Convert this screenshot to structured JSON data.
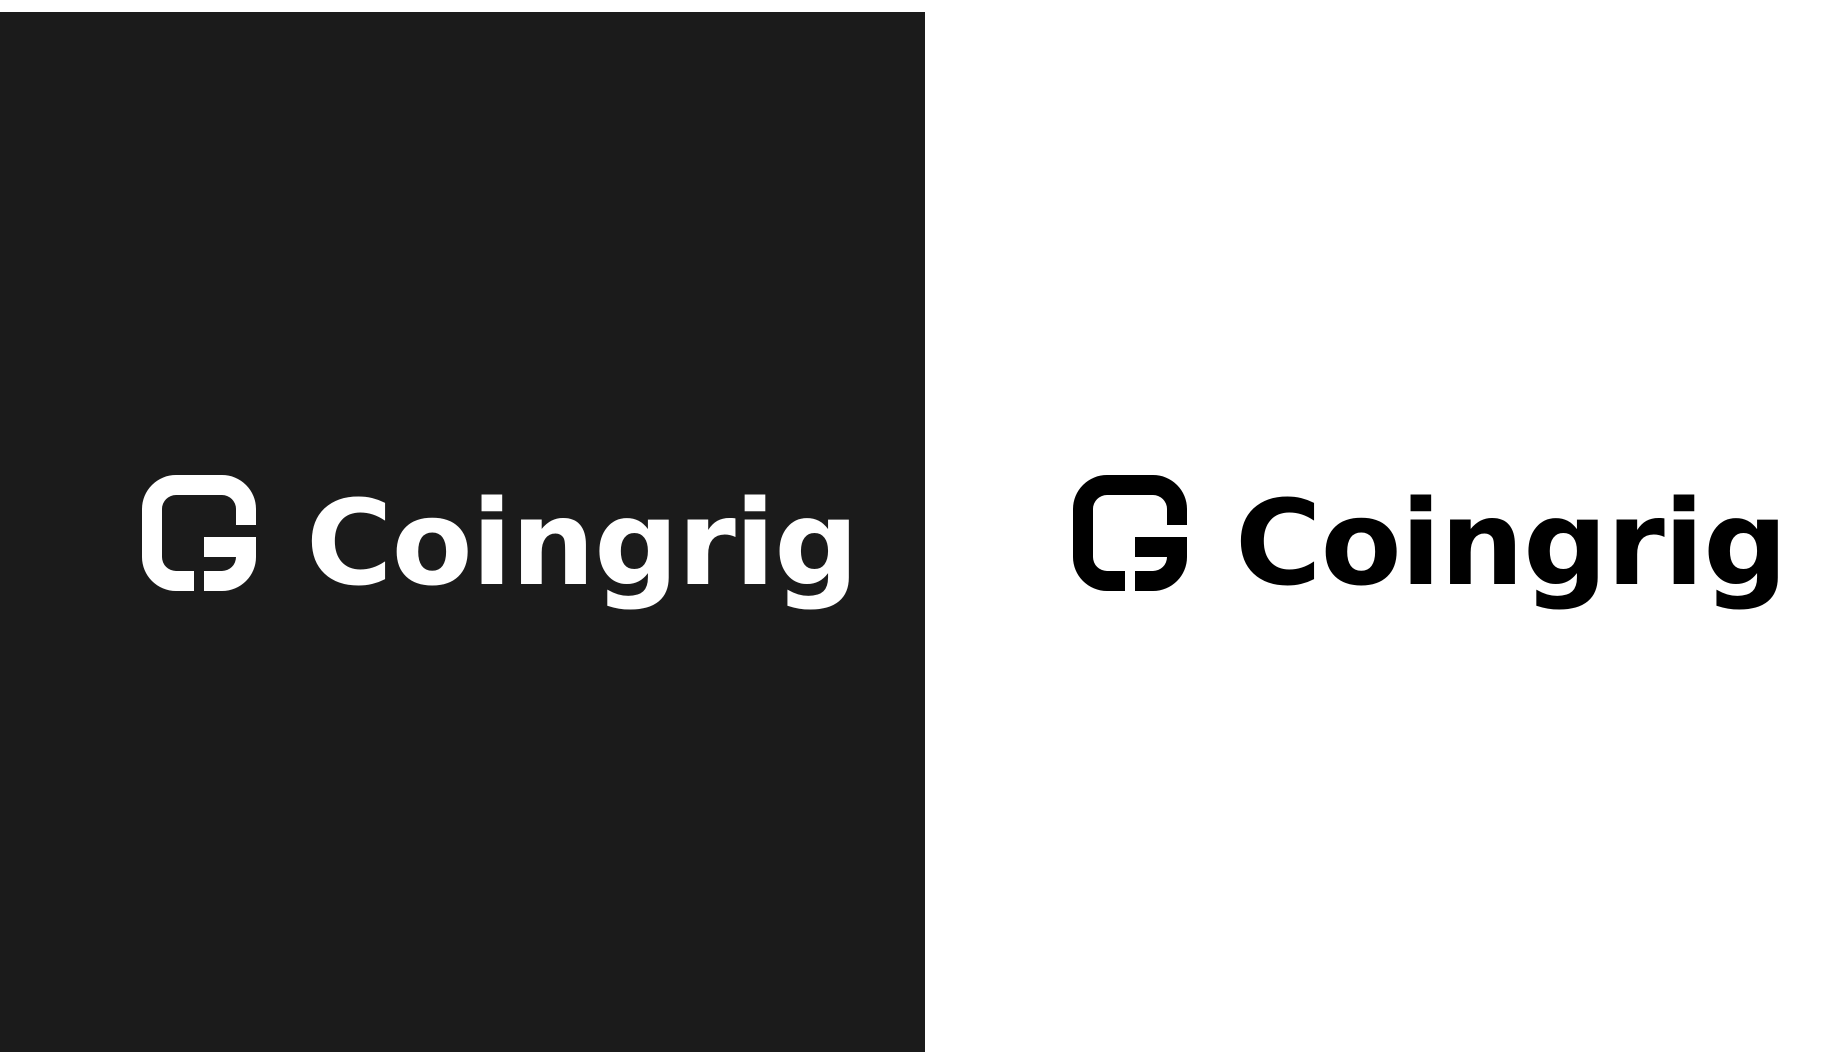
{
  "colors": {
    "dark_panel": "#1b1b1b",
    "light_panel": "#ffffff",
    "on_dark": "#ffffff",
    "on_light": "#000000"
  },
  "logo_dark": {
    "icon": "coingrig-g-mark-icon",
    "wordmark": "Coingrig"
  },
  "logo_light": {
    "icon": "coingrig-g-mark-icon",
    "wordmark": "Coingrig"
  }
}
